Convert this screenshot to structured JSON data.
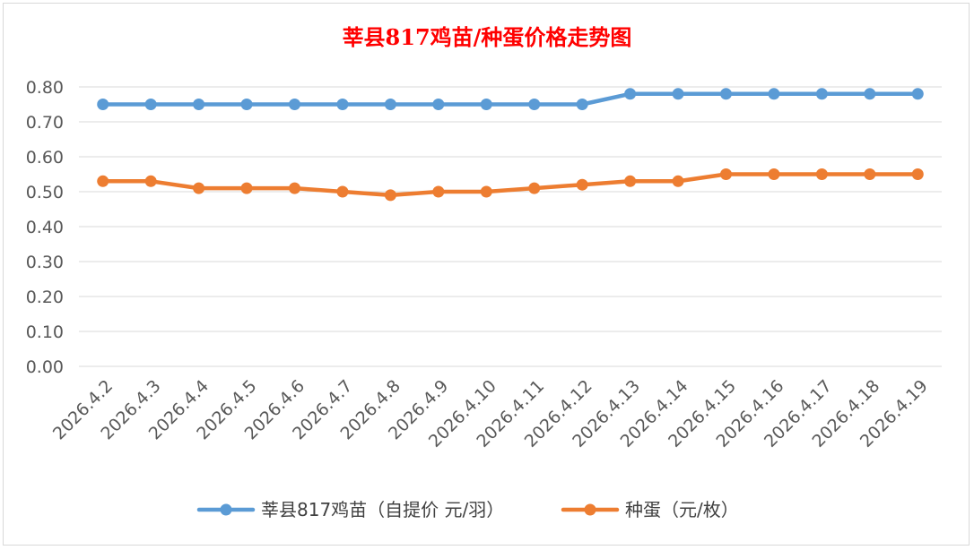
{
  "chart_data": {
    "type": "line",
    "title": "莘县817鸡苗/种蛋价格走势图",
    "xlabel": "",
    "ylabel": "",
    "ylim": [
      0,
      0.8
    ],
    "yticks": [
      "0.00",
      "0.10",
      "0.20",
      "0.30",
      "0.40",
      "0.50",
      "0.60",
      "0.70",
      "0.80"
    ],
    "grid": true,
    "legend_position": "bottom",
    "categories": [
      "2026.4.2",
      "2026.4.3",
      "2026.4.4",
      "2026.4.5",
      "2026.4.6",
      "2026.4.7",
      "2026.4.8",
      "2026.4.9",
      "2026.4.10",
      "2026.4.11",
      "2026.4.12",
      "2026.4.13",
      "2026.4.14",
      "2026.4.15",
      "2026.4.16",
      "2026.4.17",
      "2026.4.18",
      "2026.4.19"
    ],
    "series": [
      {
        "name": "莘县817鸡苗（自提价 元/羽）",
        "color": "#5B9BD5",
        "values": [
          0.75,
          0.75,
          0.75,
          0.75,
          0.75,
          0.75,
          0.75,
          0.75,
          0.75,
          0.75,
          0.75,
          0.78,
          0.78,
          0.78,
          0.78,
          0.78,
          0.78,
          0.78
        ]
      },
      {
        "name": "种蛋（元/枚）",
        "color": "#ED7D31",
        "values": [
          0.53,
          0.53,
          0.51,
          0.51,
          0.51,
          0.5,
          0.49,
          0.5,
          0.5,
          0.51,
          0.52,
          0.53,
          0.53,
          0.55,
          0.55,
          0.55,
          0.55,
          0.55
        ]
      }
    ]
  }
}
